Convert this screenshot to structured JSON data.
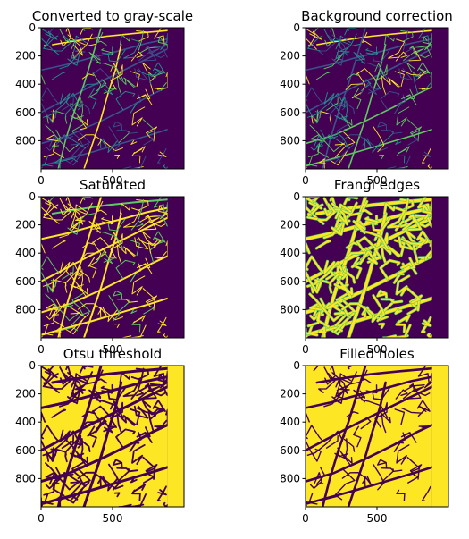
{
  "figure": {
    "colormap": [
      "#440154",
      "#3b528b",
      "#21918c",
      "#5ec962",
      "#fde725"
    ],
    "panels_dark": "#440154",
    "panels_bright": "#fde725"
  },
  "chart_data": [
    {
      "type": "heatmap",
      "title": "Converted to gray-scale",
      "style": "vessels-multitone",
      "xticks": [
        "0",
        "500"
      ],
      "yticks": [
        "0",
        "200",
        "400",
        "600",
        "800"
      ],
      "xlim": [
        0,
        1000
      ],
      "ylim": [
        1000,
        0
      ],
      "valid_x_max": 885
    },
    {
      "type": "heatmap",
      "title": "Background correction",
      "style": "vessels-multitone",
      "xticks": [
        "0",
        "500"
      ],
      "yticks": [
        "0",
        "200",
        "400",
        "600",
        "800"
      ],
      "xlim": [
        0,
        1000
      ],
      "ylim": [
        1000,
        0
      ],
      "valid_x_max": 885
    },
    {
      "type": "heatmap",
      "title": "Saturated",
      "style": "vessels-bright",
      "xticks": [
        "0",
        "500"
      ],
      "yticks": [
        "0",
        "200",
        "400",
        "600",
        "800"
      ],
      "xlim": [
        0,
        1000
      ],
      "ylim": [
        1000,
        0
      ],
      "valid_x_max": 885
    },
    {
      "type": "heatmap",
      "title": "Frangi edges",
      "style": "vessels-thick",
      "xticks": [
        "0",
        "500"
      ],
      "yticks": [
        "0",
        "200",
        "400",
        "600",
        "800"
      ],
      "xlim": [
        0,
        1000
      ],
      "ylim": [
        1000,
        0
      ],
      "valid_x_max": 885
    },
    {
      "type": "heatmap",
      "title": "Otsu threshold",
      "style": "binary-inverted",
      "xticks": [
        "0",
        "500"
      ],
      "yticks": [
        "0",
        "200",
        "400",
        "600",
        "800"
      ],
      "xlim": [
        0,
        1000
      ],
      "ylim": [
        1000,
        0
      ],
      "valid_x_max": 885
    },
    {
      "type": "heatmap",
      "title": "Filled holes",
      "style": "binary-filled",
      "xticks": [
        "0",
        "500"
      ],
      "yticks": [
        "0",
        "200",
        "400",
        "600",
        "800"
      ],
      "xlim": [
        0,
        1000
      ],
      "ylim": [
        1000,
        0
      ],
      "valid_x_max": 885
    }
  ]
}
